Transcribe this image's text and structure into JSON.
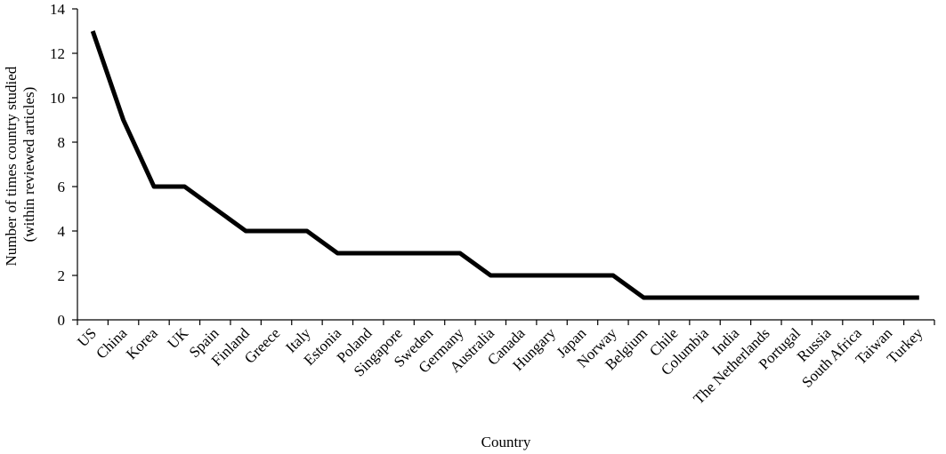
{
  "chart_data": {
    "type": "line",
    "title": "",
    "xlabel": "Country",
    "ylabel_lines": [
      "Number of times country studied",
      "(within reviewed articles)"
    ],
    "ylim": [
      0,
      14
    ],
    "yticks": [
      0,
      2,
      4,
      6,
      8,
      10,
      12,
      14
    ],
    "grid": false,
    "legend": "none",
    "categories": [
      "US",
      "China",
      "Korea",
      "UK",
      "Spain",
      "Finland",
      "Greece",
      "Italy",
      "Estonia",
      "Poland",
      "Singapore",
      "Sweden",
      "Germany",
      "Australia",
      "Canada",
      "Hungary",
      "Japan",
      "Norway",
      "Belgium",
      "Chile",
      "Columbia",
      "India",
      "The Netherlands",
      "Portugal",
      "Russia",
      "South Africa",
      "Taiwan",
      "Turkey"
    ],
    "series": [
      {
        "values": [
          13,
          9,
          6,
          6,
          5,
          4,
          4,
          4,
          3,
          3,
          3,
          3,
          3,
          2,
          2,
          2,
          2,
          2,
          1,
          1,
          1,
          1,
          1,
          1,
          1,
          1,
          1,
          1
        ],
        "color": "#000000"
      }
    ]
  }
}
